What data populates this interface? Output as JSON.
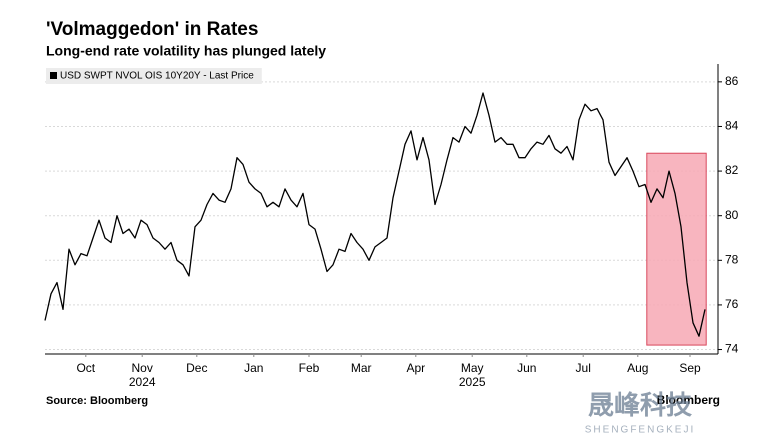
{
  "chart_data": {
    "type": "line",
    "title": "'Volmaggedon' in Rates",
    "subtitle": "Long-end rate volatility has plunged lately",
    "source": "Source: Bloomberg",
    "brand": "Bloomberg",
    "watermark": {
      "title": "晟峰科技",
      "subtitle": "SHENGFENGKEJI"
    },
    "xlim": [
      0,
      110
    ],
    "xticks": [
      {
        "value": 6.8,
        "label": "Oct"
      },
      {
        "value": 16.2,
        "label": "Nov"
      },
      {
        "value": 25.3,
        "label": "Dec"
      },
      {
        "value": 34.8,
        "label": "Jan"
      },
      {
        "value": 44,
        "label": "Feb"
      },
      {
        "value": 52.7,
        "label": "Mar"
      },
      {
        "value": 61.8,
        "label": "Apr"
      },
      {
        "value": 71.2,
        "label": "May"
      },
      {
        "value": 80.3,
        "label": "Jun"
      },
      {
        "value": 89.7,
        "label": "Jul"
      },
      {
        "value": 98.8,
        "label": "Aug"
      },
      {
        "value": 107.5,
        "label": "Sep"
      }
    ],
    "years": [
      {
        "value": 16.2,
        "label": "2024"
      },
      {
        "value": 71.2,
        "label": "2025"
      }
    ],
    "ylim": [
      73.8,
      86.8
    ],
    "yticks": [
      74,
      76,
      78,
      80,
      82,
      84,
      86
    ],
    "grid": true,
    "highlight": {
      "xlim": [
        100.3,
        110.2
      ],
      "ylim": [
        74.2,
        82.8
      ],
      "color": "#f7a8b4"
    },
    "series": [
      {
        "name": "USD SWPT NVOL OIS 10Y20Y - Last Price",
        "color": "#000000",
        "values": [
          75.3,
          76.5,
          77,
          75.8,
          78.5,
          77.8,
          78.3,
          78.2,
          79,
          79.8,
          79,
          78.8,
          80,
          79.2,
          79.4,
          79,
          79.8,
          79.6,
          79,
          78.8,
          78.5,
          78.8,
          78,
          77.8,
          77.3,
          79.5,
          79.8,
          80.5,
          81,
          80.7,
          80.6,
          81.2,
          82.6,
          82.3,
          81.5,
          81.2,
          81,
          80.4,
          80.6,
          80.4,
          81.2,
          80.7,
          80.4,
          81,
          79.6,
          79.4,
          78.5,
          77.5,
          77.8,
          78.5,
          78.4,
          79.2,
          78.8,
          78.5,
          78,
          78.6,
          78.8,
          79,
          80.8,
          82,
          83.2,
          83.8,
          82.5,
          83.5,
          82.5,
          80.5,
          81.4,
          82.5,
          83.5,
          83.3,
          84,
          83.7,
          84.5,
          85.5,
          84.5,
          83.3,
          83.5,
          83.2,
          83.2,
          82.6,
          82.6,
          83,
          83.3,
          83.2,
          83.6,
          83,
          82.8,
          83.1,
          82.5,
          84.3,
          85,
          84.7,
          84.8,
          84.3,
          82.4,
          81.8,
          82.2,
          82.6,
          82,
          81.3,
          81.4,
          80.6,
          81.2,
          80.8,
          82,
          81,
          79.5,
          77,
          75.2,
          74.6,
          75.8
        ]
      }
    ]
  }
}
